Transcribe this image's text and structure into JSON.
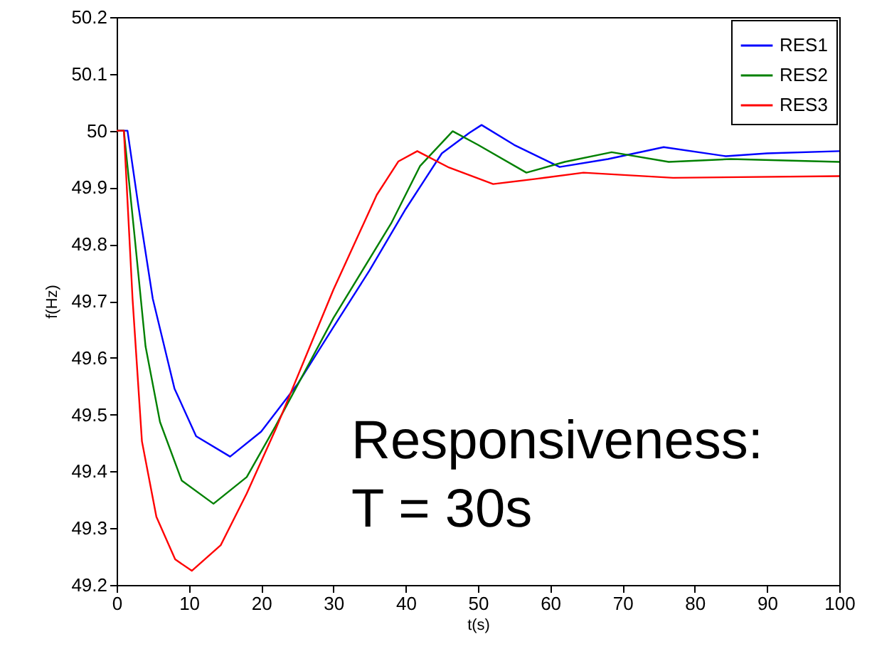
{
  "chart_data": {
    "type": "line",
    "xlabel": "t(s)",
    "ylabel": "f(Hz)",
    "xlim": [
      0,
      100
    ],
    "xticks": [
      0,
      10,
      20,
      30,
      40,
      50,
      60,
      70,
      80,
      90,
      100
    ],
    "ylim": [
      49.2,
      50.2
    ],
    "yticks": [
      49.2,
      49.3,
      49.4,
      49.5,
      49.6,
      49.7,
      49.8,
      49.9,
      50,
      50.1,
      50.2
    ],
    "grid": false,
    "legend": "top right",
    "marker": "none",
    "line_style": "solid",
    "annotations": [
      "Responsiveness:\nT = 30s"
    ],
    "series": [
      {
        "name": "RES1",
        "color": "#0000ff",
        "x": [
          0,
          1.5,
          3,
          5,
          8,
          11,
          15.7,
          20,
          25,
          30,
          35,
          40,
          45,
          48.8,
          50.5,
          55,
          61.3,
          68,
          75.7,
          84.3,
          90,
          100
        ],
        "values": [
          50,
          50,
          49.868,
          49.704,
          49.546,
          49.462,
          49.426,
          49.47,
          49.553,
          49.654,
          49.754,
          49.862,
          49.96,
          49.996,
          50.01,
          49.975,
          49.936,
          49.95,
          49.971,
          49.955,
          49.96,
          49.964
        ]
      },
      {
        "name": "RES2",
        "color": "#008000",
        "x": [
          0,
          1,
          2.5,
          4,
          6,
          9,
          13.4,
          18,
          22,
          30,
          38,
          42,
          46.5,
          50,
          56.7,
          62,
          68.5,
          76.4,
          85,
          100
        ],
        "values": [
          50,
          50,
          49.812,
          49.62,
          49.487,
          49.384,
          49.343,
          49.39,
          49.48,
          49.67,
          49.837,
          49.938,
          49.999,
          49.975,
          49.926,
          49.945,
          49.962,
          49.945,
          49.95,
          49.945
        ]
      },
      {
        "name": "RES3",
        "color": "#ff0000",
        "x": [
          0,
          1,
          2.2,
          3.5,
          5.5,
          8.1,
          10.4,
          14.4,
          18,
          22,
          30,
          36,
          39,
          41.6,
          46,
          52.1,
          58,
          64.6,
          77,
          100
        ],
        "values": [
          50,
          50,
          49.704,
          49.453,
          49.32,
          49.245,
          49.225,
          49.27,
          49.361,
          49.474,
          49.72,
          49.887,
          49.946,
          49.964,
          49.935,
          49.906,
          49.915,
          49.926,
          49.917,
          49.92
        ]
      }
    ]
  }
}
